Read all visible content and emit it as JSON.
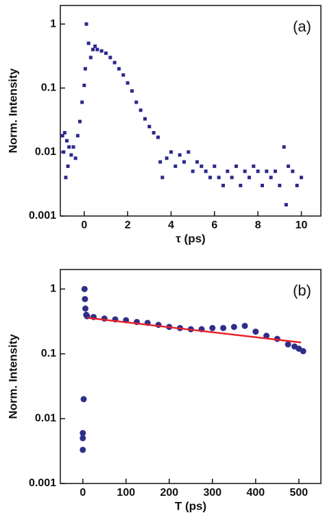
{
  "chart_data": [
    {
      "type": "scatter",
      "marker": "square",
      "color": "#2a2a8c",
      "annotation": "(a)",
      "x_label": "τ (ps)",
      "y_label": "Norm. Intensity",
      "log_y": true,
      "xlim": [
        -1.1,
        10.9
      ],
      "ylim": [
        0.001,
        1.95
      ],
      "xticks": [
        0,
        2,
        4,
        6,
        8,
        10
      ],
      "yticks": [
        0.001,
        0.01,
        0.1,
        1
      ],
      "x": [
        -1,
        -0.95,
        -0.9,
        -0.85,
        -0.8,
        -0.75,
        -0.7,
        -0.6,
        -0.5,
        -0.4,
        -0.3,
        -0.2,
        -0.1,
        0,
        0.05,
        0.1,
        0.2,
        0.3,
        0.4,
        0.5,
        0.6,
        0.8,
        1.0,
        1.2,
        1.4,
        1.6,
        1.8,
        2.0,
        2.2,
        2.4,
        2.6,
        2.8,
        3.0,
        3.2,
        3.4,
        3.5,
        3.6,
        3.8,
        4.0,
        4.2,
        4.4,
        4.6,
        4.8,
        5.0,
        5.2,
        5.4,
        5.6,
        5.8,
        6.0,
        6.2,
        6.4,
        6.6,
        6.8,
        7.0,
        7.2,
        7.4,
        7.6,
        7.8,
        8.0,
        8.2,
        8.4,
        8.6,
        8.8,
        9.0,
        9.2,
        9.3,
        9.4,
        9.6,
        9.8,
        10.0
      ],
      "values": [
        0.018,
        0.01,
        0.02,
        0.004,
        0.015,
        0.006,
        0.012,
        0.009,
        0.012,
        0.008,
        0.018,
        0.03,
        0.06,
        0.11,
        0.2,
        1,
        0.5,
        0.3,
        0.4,
        0.45,
        0.4,
        0.38,
        0.35,
        0.3,
        0.25,
        0.2,
        0.16,
        0.12,
        0.09,
        0.06,
        0.045,
        0.033,
        0.025,
        0.02,
        0.017,
        0.007,
        0.004,
        0.008,
        0.01,
        0.006,
        0.009,
        0.007,
        0.01,
        0.005,
        0.007,
        0.006,
        0.005,
        0.004,
        0.006,
        0.004,
        0.003,
        0.005,
        0.004,
        0.006,
        0.003,
        0.005,
        0.004,
        0.006,
        0.005,
        0.003,
        0.005,
        0.004,
        0.005,
        0.003,
        0.012,
        0.0015,
        0.006,
        0.005,
        0.003,
        0.004
      ]
    },
    {
      "type": "scatter",
      "marker": "circle",
      "color": "#2e2e8a",
      "annotation": "(b)",
      "x_label": "T (ps)",
      "y_label": "Norm. Intensity",
      "log_y": true,
      "xlim": [
        -52,
        551
      ],
      "ylim": [
        0.001,
        2
      ],
      "xticks": [
        0,
        100,
        200,
        300,
        400,
        500
      ],
      "yticks": [
        0.001,
        0.01,
        0.1,
        1
      ],
      "x": [
        0,
        0,
        0,
        2,
        4,
        5,
        6,
        8,
        10,
        25,
        50,
        75,
        100,
        125,
        150,
        175,
        200,
        225,
        250,
        275,
        300,
        325,
        350,
        375,
        400,
        425,
        450,
        475,
        490,
        500,
        510
      ],
      "values": [
        0.0033,
        0.005,
        0.006,
        0.02,
        1,
        0.7,
        0.5,
        0.4,
        0.38,
        0.37,
        0.35,
        0.34,
        0.33,
        0.31,
        0.3,
        0.28,
        0.26,
        0.25,
        0.24,
        0.24,
        0.25,
        0.25,
        0.26,
        0.27,
        0.22,
        0.19,
        0.17,
        0.14,
        0.13,
        0.12,
        0.11
      ],
      "fit": {
        "color": "#e8202a",
        "x": [
          10,
          505
        ],
        "values": [
          0.36,
          0.15
        ]
      }
    }
  ]
}
